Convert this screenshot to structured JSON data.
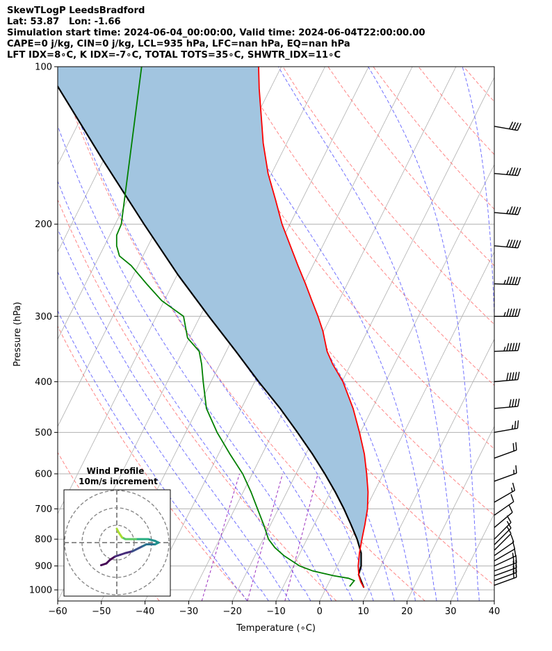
{
  "header": {
    "line1": "SkewTLogP LeedsBradford",
    "line2": "Lat: 53.87   Lon: -1.66",
    "line3": "Simulation start time: 2024-06-04_00:00:00, Valid time: 2024-06-04T22:00:00.00",
    "line4": "CAPE=0 j/kg, CIN=0 j/kg, LCL=935 hPa, LFC=nan hPa, EQ=nan hPa",
    "line5": "LFT IDX=8∘C, K IDX=-7∘C, TOTAL TOTS=35∘C, SHWTR_IDX=11∘C"
  },
  "chart_data": [
    {
      "type": "line",
      "subtype": "skew-t log-p",
      "xlabel": "Temperature (∘C)",
      "ylabel": "Pressure (hPa)",
      "xlim": [
        -60,
        40
      ],
      "ylim": [
        1050,
        100
      ],
      "yscale": "log",
      "xticks": [
        -60,
        -50,
        -40,
        -30,
        -20,
        -10,
        0,
        10,
        20,
        30,
        40
      ],
      "yticks": [
        100,
        200,
        300,
        400,
        500,
        600,
        700,
        800,
        900,
        1000
      ],
      "grid": true,
      "colors": {
        "temperature": "#ff0000",
        "dewpoint": "#008000",
        "parcel": "#000000",
        "shade": "#a2c5e0",
        "dry_adiabat": "#ff6666",
        "moist_adiabat": "#4d4dff",
        "mixing_ratio": "#9b30c0",
        "isotherm": "#b0b0b0"
      },
      "series": [
        {
          "name": "temperature",
          "p": [
            990,
            965,
            940,
            900,
            850,
            800,
            750,
            700,
            650,
            600,
            550,
            500,
            450,
            400,
            370,
            350,
            320,
            300,
            280,
            260,
            240,
            220,
            200,
            180,
            160,
            140,
            120,
            110,
            100
          ],
          "t": [
            8.6,
            7.2,
            6.1,
            4.8,
            3.6,
            2.6,
            1.6,
            0.4,
            -1.4,
            -3.8,
            -6.6,
            -10.2,
            -14.4,
            -19.8,
            -24.2,
            -26.9,
            -30.2,
            -33.0,
            -36.2,
            -39.6,
            -43.4,
            -47.4,
            -51.8,
            -56.0,
            -60.8,
            -65.4,
            -70.0,
            -72.6,
            -75.2
          ]
        },
        {
          "name": "dewpoint",
          "p": [
            985,
            960,
            950,
            940,
            920,
            900,
            860,
            830,
            800,
            750,
            700,
            650,
            600,
            550,
            500,
            450,
            400,
            370,
            350,
            330,
            300,
            280,
            260,
            240,
            230,
            220,
            210,
            200,
            100
          ],
          "td": [
            5.2,
            5.6,
            4.0,
            0.4,
            -5.0,
            -8.6,
            -13.4,
            -16.4,
            -18.8,
            -21.6,
            -24.8,
            -28.2,
            -32.2,
            -37.4,
            -42.8,
            -48.0,
            -51.8,
            -54.2,
            -56.2,
            -60.4,
            -63.8,
            -70.6,
            -76.0,
            -81.6,
            -85.4,
            -87.2,
            -88.4,
            -88.6,
            -102.0
          ]
        },
        {
          "name": "parcel",
          "p": [
            990,
            935,
            900,
            850,
            800,
            750,
            700,
            650,
            600,
            550,
            500,
            450,
            400,
            350,
            300,
            250,
            200,
            150,
            100
          ],
          "t": [
            8.6,
            5.9,
            5.5,
            4.0,
            1.5,
            -1.6,
            -5.0,
            -8.9,
            -13.4,
            -18.5,
            -24.4,
            -31.1,
            -39.1,
            -47.8,
            -58.0,
            -69.8,
            -83.4,
            -100.5,
            -124.0
          ]
        }
      ],
      "wind_barbs": {
        "p": [
          130,
          160,
          190,
          220,
          260,
          300,
          350,
          400,
          450,
          500,
          560,
          620,
          680,
          720,
          760,
          800,
          820,
          840,
          860,
          880,
          900,
          920,
          940,
          960,
          980
        ],
        "speed_kt": [
          40,
          45,
          45,
          50,
          55,
          55,
          55,
          50,
          40,
          25,
          20,
          15,
          15,
          12,
          10,
          10,
          10,
          10,
          10,
          12,
          15,
          18,
          20,
          20,
          20
        ],
        "direction_deg": [
          280,
          275,
          275,
          275,
          272,
          270,
          268,
          265,
          265,
          260,
          250,
          250,
          240,
          235,
          230,
          225,
          225,
          225,
          235,
          240,
          245,
          250,
          250,
          250,
          250
        ]
      },
      "units": "hPa"
    },
    {
      "type": "scatter",
      "subtype": "hodograph",
      "title": "Wind Profile",
      "subtitle": "10m/s increment",
      "ring_increment": 10,
      "u": [
        -9,
        -6,
        -4,
        -1,
        2,
        5,
        9,
        13,
        15,
        17,
        20,
        22,
        24,
        22,
        18,
        14,
        11,
        8,
        5,
        3,
        1,
        0
      ],
      "v": [
        -13,
        -12,
        -10,
        -8,
        -7,
        -6,
        -5,
        -3,
        -2,
        -1,
        -1,
        -1,
        0,
        1,
        2,
        2,
        2,
        2,
        2,
        3,
        6,
        8
      ]
    }
  ]
}
